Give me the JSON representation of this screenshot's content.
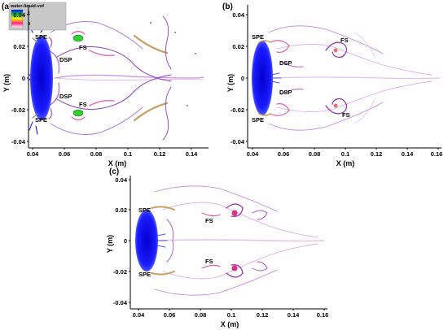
{
  "panels": [
    {
      "label": "(a)",
      "xlabel": "X (m)",
      "ylabel": "Y (m)",
      "xticks": [
        "0.04",
        "0.06",
        "0.08",
        "0.1",
        "0.12",
        "0.14"
      ],
      "yticks": [
        "0.04",
        "0.02",
        "0",
        "-0.02",
        "-0.04"
      ],
      "annotations": [
        "SPE",
        "DSP",
        "FS",
        "DSP",
        "FS",
        "SPE"
      ]
    },
    {
      "label": "(b)",
      "xlabel": "X (m)",
      "ylabel": "Y (m)",
      "xticks": [
        "0.04",
        "0.06",
        "0.08",
        "0.1",
        "0.12",
        "0.14",
        "0.16"
      ],
      "yticks": [
        "0.04",
        "0.02",
        "0",
        "-0.02",
        "-0.04"
      ],
      "annotations": [
        "SPE",
        "DSP",
        "FS",
        "DSP",
        "FS",
        "SPE"
      ]
    },
    {
      "label": "(c)",
      "xlabel": "X (m)",
      "ylabel": "Y (m)",
      "xticks": [
        "0.04",
        "0.06",
        "0.08",
        "0.1",
        "0.12",
        "0.14",
        "0.16"
      ],
      "yticks": [
        "0.04",
        "0.02",
        "0",
        "-0.02",
        "-0.04"
      ],
      "annotations": [
        "SPE",
        "FS",
        "FS",
        "SPE"
      ]
    }
  ],
  "legend": {
    "title": "water-liquid-vof",
    "ticks": [
      "1",
      "0"
    ],
    "colors": [
      "#0000ff",
      "#00cc44",
      "#ffee00",
      "#ff2288",
      "#ffffff"
    ]
  }
}
